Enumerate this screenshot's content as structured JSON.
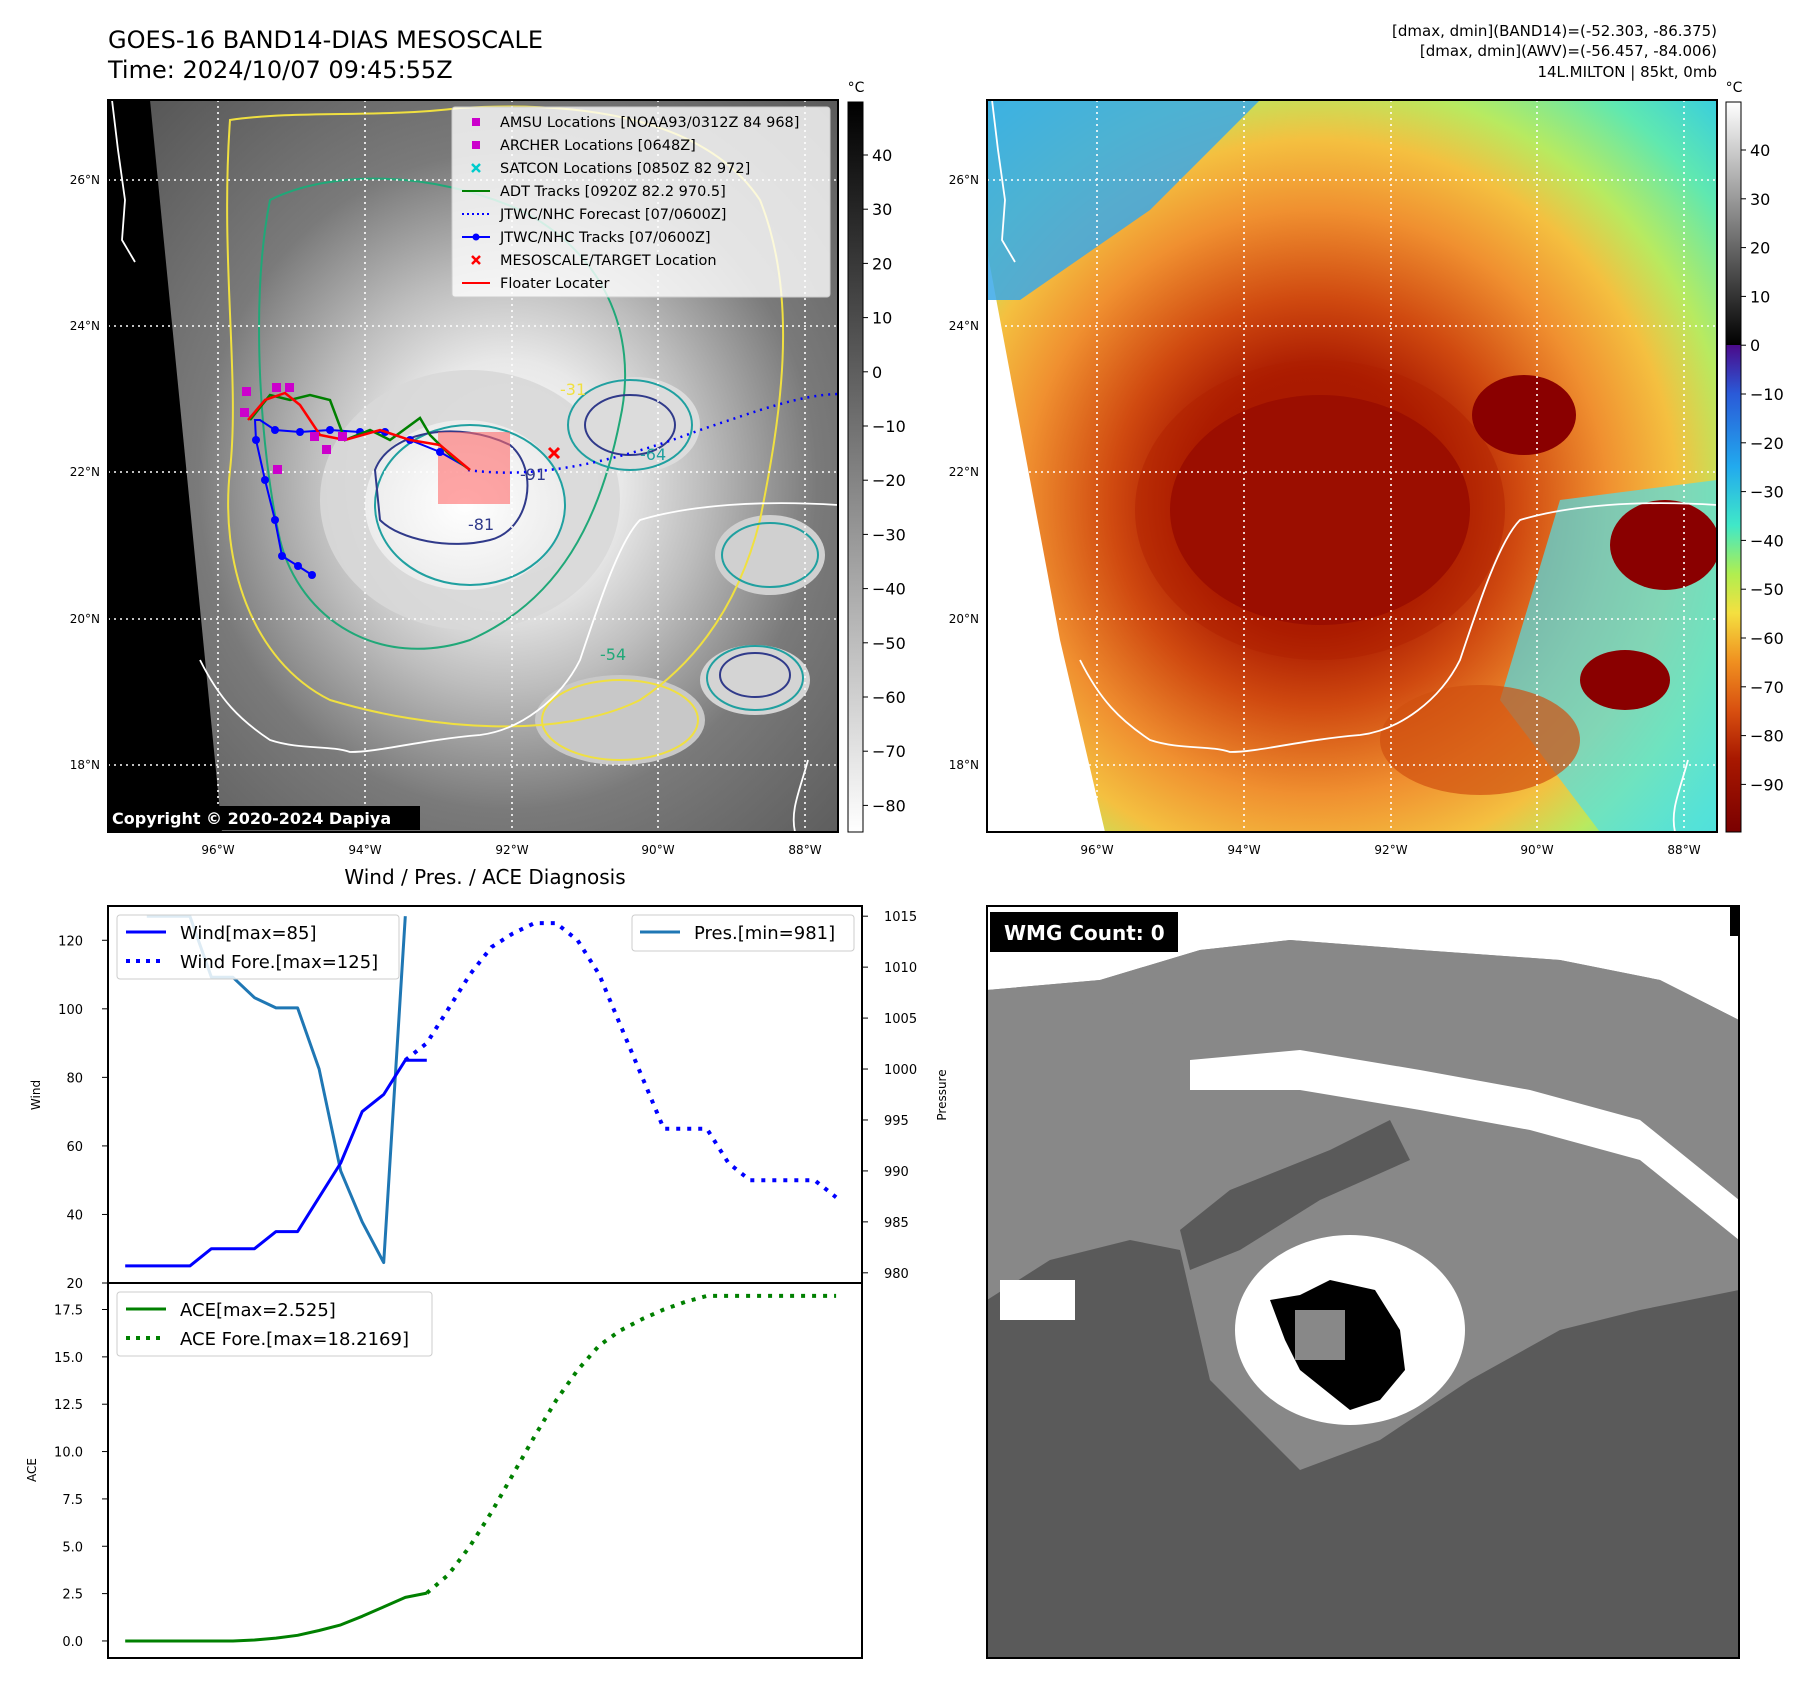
{
  "header": {
    "title_line1": "GOES-16 BAND14-DIAS MESOSCALE",
    "title_line2": "Time: 2024/10/07 09:45:55Z",
    "dm_band14": "[dmax, dmin](BAND14)=(-52.303, -86.375)",
    "dm_awv": "[dmax, dmin](AWV)=(-56.457, -84.006)",
    "storm_info": "14L.MILTON | 85kt, 0mb"
  },
  "map": {
    "lon_ticks": [
      "96°W",
      "94°W",
      "92°W",
      "90°W",
      "88°W"
    ],
    "lat_ticks": [
      "26°N",
      "24°N",
      "22°N",
      "20°N",
      "18°N"
    ],
    "unit": "°C",
    "copyright": "Copyright © 2020-2024 Dapiya",
    "contour_labels": [
      "-31",
      "-54",
      "-64",
      "-81",
      "-91"
    ],
    "legend": [
      {
        "label": "AMSU Locations [NOAA93/0312Z 84 968]",
        "color": "#cc00cc",
        "style": "square"
      },
      {
        "label": "ARCHER Locations [0648Z]",
        "color": "#cc00cc",
        "style": "square"
      },
      {
        "label": "SATCON Locations [0850Z 82 972]",
        "color": "#00cccc",
        "style": "x"
      },
      {
        "label": "ADT Tracks [0920Z 82.2 970.5]",
        "color": "#008000",
        "style": "line"
      },
      {
        "label": "JTWC/NHC Forecast [07/0600Z]",
        "color": "#0000ff",
        "style": "dotted"
      },
      {
        "label": "JTWC/NHC Tracks [07/0600Z]",
        "color": "#0000ff",
        "style": "line-dot"
      },
      {
        "label": "MESOSCALE/TARGET Location",
        "color": "#ff0000",
        "style": "x"
      },
      {
        "label": "Floater Locater",
        "color": "#ff0000",
        "style": "line"
      }
    ],
    "colorbar_gray_ticks": [
      "40",
      "30",
      "20",
      "10",
      "0",
      "−10",
      "−20",
      "−30",
      "−40",
      "−50",
      "−60",
      "−70",
      "−80"
    ],
    "colorbar_color_ticks": [
      "40",
      "30",
      "20",
      "10",
      "0",
      "−10",
      "−20",
      "−30",
      "−40",
      "−50",
      "−60",
      "−70",
      "−80",
      "−90"
    ]
  },
  "chart_data": [
    {
      "type": "line",
      "title": "Wind / Pres. / ACE Diagnosis",
      "ylabel": "Wind",
      "y2label": "Pressure",
      "ylim": [
        20,
        130
      ],
      "y2lim": [
        979,
        1016
      ],
      "yticks": [
        20,
        40,
        60,
        80,
        100,
        120
      ],
      "y2ticks": [
        980,
        985,
        990,
        995,
        1000,
        1005,
        1010,
        1015
      ],
      "series": [
        {
          "name": "Wind[max=85]",
          "color": "#0000ff",
          "style": "solid",
          "x": [
            0,
            1,
            2,
            3,
            4,
            5,
            6,
            7,
            8,
            9,
            10,
            11,
            12,
            13,
            14
          ],
          "values": [
            25,
            25,
            25,
            25,
            30,
            30,
            30,
            35,
            35,
            45,
            55,
            70,
            75,
            85,
            85
          ]
        },
        {
          "name": "Wind Fore.[max=125]",
          "color": "#0000ff",
          "style": "dotted",
          "x": [
            13,
            14,
            15,
            16,
            17,
            18,
            19,
            20,
            21,
            22,
            23,
            24,
            25,
            26,
            27,
            28,
            29,
            30,
            31,
            32,
            33
          ],
          "values": [
            85,
            90,
            100,
            110,
            118,
            122,
            125,
            125,
            120,
            110,
            95,
            80,
            65,
            65,
            65,
            55,
            50,
            50,
            50,
            50,
            45
          ]
        },
        {
          "name": "Pres.[min=981]",
          "color": "#1f77b4",
          "style": "solid",
          "axis": "right",
          "x": [
            1,
            2,
            3,
            4,
            5,
            6,
            7,
            8,
            9,
            10,
            11,
            12,
            13
          ],
          "values": [
            1015,
            1015,
            1015,
            1009,
            1009,
            1007,
            1006,
            1006,
            1000,
            990,
            985,
            981,
            1015
          ]
        }
      ],
      "x_span": [
        -0.8,
        34.2
      ]
    },
    {
      "type": "line",
      "ylabel": "ACE",
      "ylim": [
        -0.9,
        18.9
      ],
      "yticks": [
        "0.0",
        "2.5",
        "5.0",
        "7.5",
        "10.0",
        "12.5",
        "15.0",
        "17.5"
      ],
      "series": [
        {
          "name": "ACE[max=2.525]",
          "color": "#008000",
          "style": "solid",
          "x": [
            0,
            1,
            2,
            3,
            4,
            5,
            6,
            7,
            8,
            9,
            10,
            11,
            12,
            13,
            14
          ],
          "values": [
            0,
            0,
            0,
            0,
            0,
            0,
            0.05,
            0.15,
            0.3,
            0.55,
            0.85,
            1.3,
            1.8,
            2.3,
            2.525
          ]
        },
        {
          "name": "ACE Fore.[max=18.2169]",
          "color": "#008000",
          "style": "dotted",
          "x": [
            14,
            15,
            16,
            17,
            18,
            19,
            20,
            21,
            22,
            23,
            24,
            25,
            26,
            27,
            28,
            29,
            30,
            31,
            32,
            33
          ],
          "values": [
            2.525,
            3.5,
            5,
            6.8,
            8.8,
            10.8,
            12.7,
            14.3,
            15.6,
            16.4,
            17,
            17.5,
            17.9,
            18.2169,
            18.2169,
            18.2169,
            18.2169,
            18.2169,
            18.2169,
            18.2169
          ]
        }
      ],
      "x_span": [
        -0.8,
        34.2
      ]
    }
  ],
  "wmg": {
    "label": "WMG Count: 0"
  }
}
